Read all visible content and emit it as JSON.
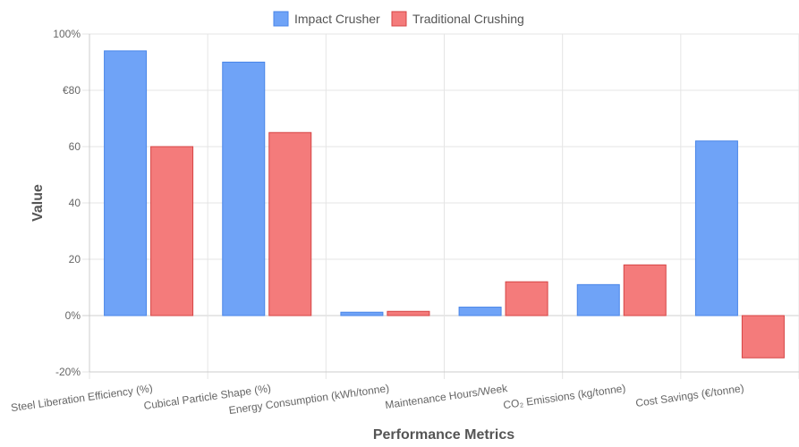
{
  "chart_data": {
    "type": "bar",
    "title": "",
    "xlabel": "Performance Metrics",
    "ylabel": "Value",
    "ylim": [
      -20,
      100
    ],
    "yticks": [
      {
        "value": 100,
        "label": "100%"
      },
      {
        "value": 80,
        "label": "€80"
      },
      {
        "value": 60,
        "label": "60"
      },
      {
        "value": 40,
        "label": "40"
      },
      {
        "value": 20,
        "label": "20"
      },
      {
        "value": 0,
        "label": "0%"
      },
      {
        "value": -20,
        "label": "-20%"
      }
    ],
    "categories": [
      "Steel Liberation Efficiency (%)",
      "Cubical Particle Shape (%)",
      "Energy Consumption (kWh/tonne)",
      "Maintenance Hours/Week",
      "CO₂ Emissions (kg/tonne)",
      "Cost Savings (€/tonne)"
    ],
    "series": [
      {
        "name": "Impact Crusher",
        "color": "#6fa3f7",
        "border": "#4a86e8",
        "values": [
          94,
          90,
          1.2,
          3,
          11,
          62
        ]
      },
      {
        "name": "Traditional Crushing",
        "color": "#f47b7b",
        "border": "#d64545",
        "values": [
          60,
          65,
          1.5,
          12,
          18,
          -15
        ]
      }
    ],
    "legend_position": "top-center",
    "grid": true
  }
}
